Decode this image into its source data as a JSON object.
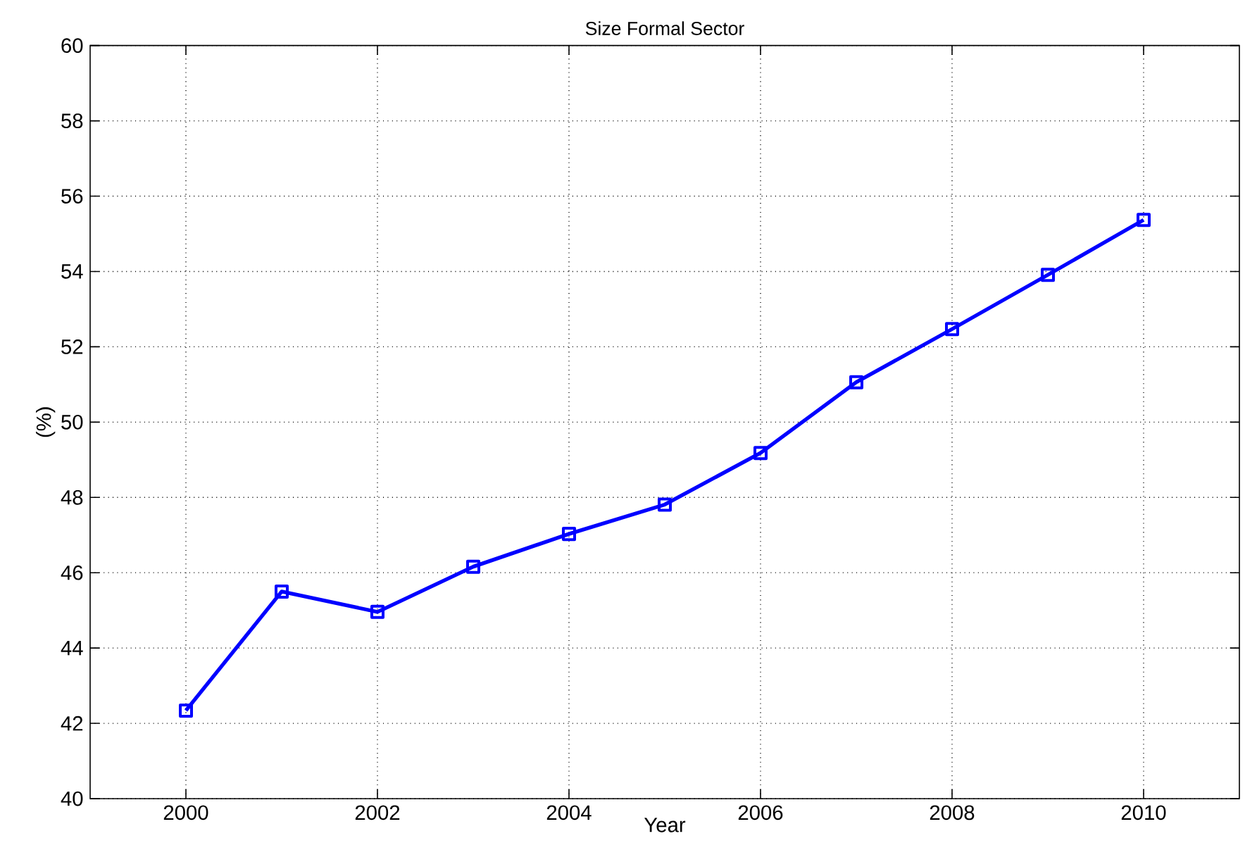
{
  "chart_data": {
    "type": "line",
    "title": "Size Formal Sector",
    "xlabel": "Year",
    "ylabel": "(%)",
    "x": [
      2000,
      2001,
      2002,
      2003,
      2004,
      2005,
      2006,
      2007,
      2008,
      2009,
      2010
    ],
    "series": [
      {
        "color": "#0000ff",
        "values": [
          42.34,
          45.5,
          44.96,
          46.16,
          47.03,
          47.81,
          49.18,
          51.06,
          52.47,
          53.91,
          55.37
        ]
      }
    ],
    "xlim": [
      1999,
      2011
    ],
    "ylim": [
      40,
      60
    ],
    "xticks": [
      2000,
      2002,
      2004,
      2006,
      2008,
      2010
    ],
    "yticks": [
      40,
      42,
      44,
      46,
      48,
      50,
      52,
      54,
      56,
      58,
      60
    ],
    "grid": true,
    "marker": "square",
    "line_style": "solid"
  }
}
